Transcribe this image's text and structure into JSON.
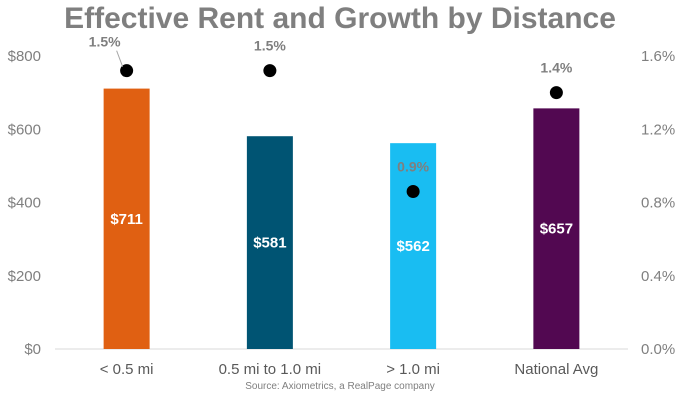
{
  "chart_data": {
    "type": "bar",
    "title": "Effective Rent and Growth by Distance",
    "source": "Source: Axiometrics, a RealPage company",
    "categories": [
      "< 0.5 mi",
      "0.5 mi to 1.0 mi",
      "> 1.0 mi",
      "National Avg"
    ],
    "series": [
      {
        "values": [
          711,
          581,
          562,
          657
        ],
        "value_labels": [
          "$711",
          "$581",
          "$562",
          "$657"
        ],
        "colors": [
          "#e06012",
          "#005473",
          "#19bdf2",
          "#520851"
        ],
        "axis": "left"
      },
      {
        "type": "scatter",
        "values": [
          1.52,
          1.52,
          0.86,
          1.4
        ],
        "value_labels": [
          "1.5%",
          "1.5%",
          "0.9%",
          "1.4%"
        ],
        "color": "#000000",
        "axis": "right"
      }
    ],
    "ylim": [
      0,
      800
    ],
    "y_ticks": [
      "$0",
      "$200",
      "$400",
      "$600",
      "$800"
    ],
    "y2lim": [
      0,
      1.6
    ],
    "y2_ticks": [
      "0.0%",
      "0.4%",
      "0.8%",
      "1.2%",
      "1.6%"
    ],
    "grid": false,
    "legend": "none"
  }
}
